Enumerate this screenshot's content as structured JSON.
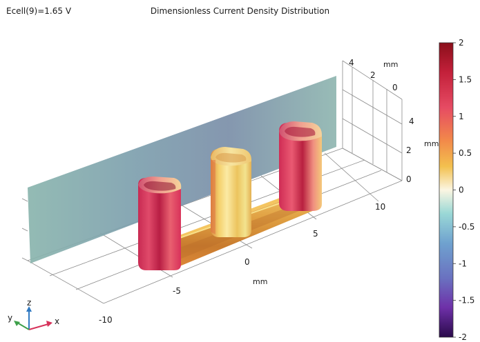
{
  "header": {
    "parameter_label": "Ecell(9)=1.65 V",
    "title": "Dimensionless Current Density Distribution"
  },
  "axes": {
    "x_ticks": [
      "-10",
      "-5",
      "0",
      "5",
      "10"
    ],
    "x_unit": "mm",
    "y_ticks": [
      "4",
      "2",
      "0"
    ],
    "y_unit": "mm",
    "z_ticks": [
      "4",
      "2",
      "0"
    ],
    "z_unit": "mm"
  },
  "triad": {
    "x": "x",
    "y": "y",
    "z": "z"
  },
  "colorbar": {
    "ticks": [
      "2",
      "1.5",
      "1",
      "0.5",
      "0",
      "-0.5",
      "-1",
      "-1.5",
      "-2"
    ],
    "min": -2,
    "max": 2,
    "colormap": "spectrum (dark red → red → orange → white → cyan → blue → purple)"
  },
  "colors": {
    "plane_edge": "#8ab2ae",
    "plane_mid": "#7e97aa",
    "pillar_red": "#d6325a",
    "pillar_yellow": "#f1dc7a",
    "base_orange": "#d98f36",
    "triad_x": "#d6325a",
    "triad_y": "#3ea04a",
    "triad_z": "#2f79c2"
  }
}
